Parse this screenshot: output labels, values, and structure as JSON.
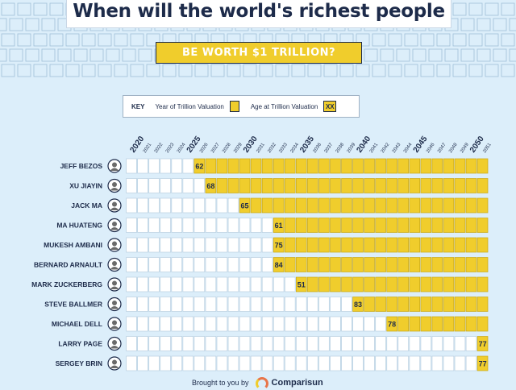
{
  "title": "When will the world's richest people",
  "subtitle": "BE WORTH $1 TRILLION?",
  "key": {
    "title": "KEY",
    "year_label": "Year of Trillion Valuation",
    "age_label": "Age at Trillion Valuation",
    "age_placeholder": "XX"
  },
  "footer": {
    "brought": "Brought to you by",
    "brand": "Comparisun"
  },
  "colors": {
    "yellow": "#f0cd2c",
    "navy": "#1d2b4a",
    "background": "#dceefa",
    "empty_cell": "#ffffff"
  },
  "chart_data": {
    "type": "table",
    "title": "When will the world's richest people BE WORTH $1 TRILLION?",
    "x_range": [
      2020,
      2051
    ],
    "major_years": [
      2020,
      2025,
      2030,
      2035,
      2040,
      2045,
      2050
    ],
    "people": [
      {
        "name": "JEFF BEZOS",
        "year": 2026,
        "age": 62
      },
      {
        "name": "XU JIAYIN",
        "year": 2027,
        "age": 68
      },
      {
        "name": "JACK MA",
        "year": 2030,
        "age": 65
      },
      {
        "name": "MA HUATENG",
        "year": 2033,
        "age": 61
      },
      {
        "name": "MUKESH AMBANI",
        "year": 2033,
        "age": 75
      },
      {
        "name": "BERNARD ARNAULT",
        "year": 2033,
        "age": 84
      },
      {
        "name": "MARK ZUCKERBERG",
        "year": 2035,
        "age": 51
      },
      {
        "name": "STEVE BALLMER",
        "year": 2040,
        "age": 83
      },
      {
        "name": "MICHAEL DELL",
        "year": 2043,
        "age": 78
      },
      {
        "name": "LARRY PAGE",
        "year": 2051,
        "age": 77
      },
      {
        "name": "SERGEY BRIN",
        "year": 2051,
        "age": 77
      }
    ]
  }
}
